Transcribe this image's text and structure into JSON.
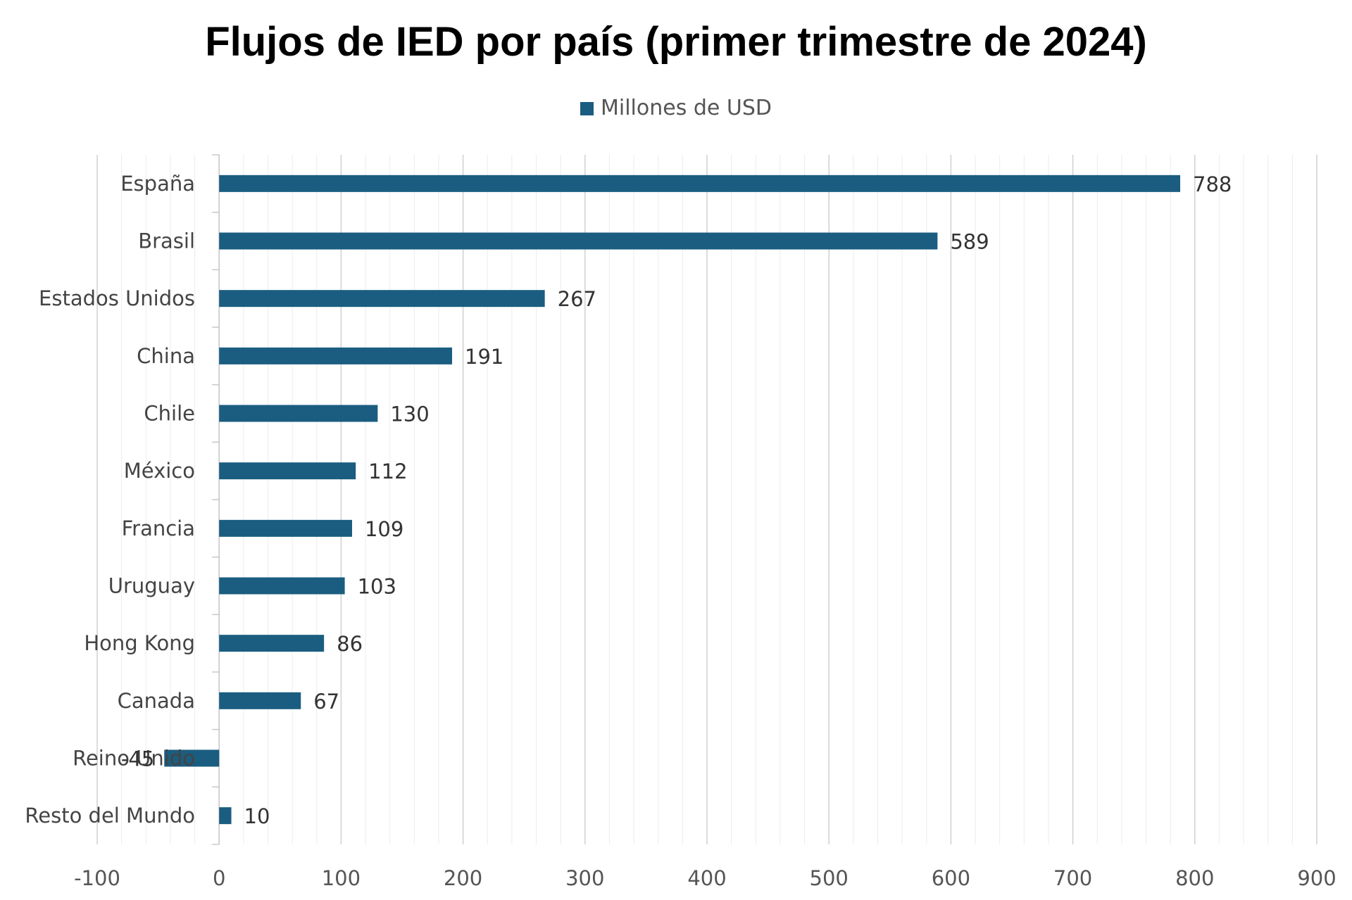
{
  "chart_data": {
    "type": "bar",
    "orientation": "horizontal",
    "title": "Flujos de IED por país (primer trimestre de 2024)",
    "categories": [
      "España",
      "Brasil",
      "Estados Unidos",
      "China",
      "Chile",
      "México",
      "Francia",
      "Uruguay",
      "Hong Kong",
      "Canada",
      "Reino Unido",
      "Resto del Mundo"
    ],
    "series": [
      {
        "name": "Millones de USD",
        "values": [
          788,
          589,
          267,
          191,
          130,
          112,
          109,
          103,
          86,
          67,
          -45,
          10
        ],
        "color": "#1a5d80"
      }
    ],
    "xlim": [
      -100,
      900
    ],
    "xticks": [
      -100,
      0,
      100,
      200,
      300,
      400,
      500,
      600,
      700,
      800,
      900
    ],
    "xtick_labels": [
      "-100",
      "0",
      "100",
      "200",
      "300",
      "400",
      "500",
      "600",
      "700",
      "800",
      "900"
    ],
    "data_labels": true,
    "grid": {
      "major": true,
      "minor": true,
      "axis": "x"
    },
    "legend_position": "top-center"
  }
}
